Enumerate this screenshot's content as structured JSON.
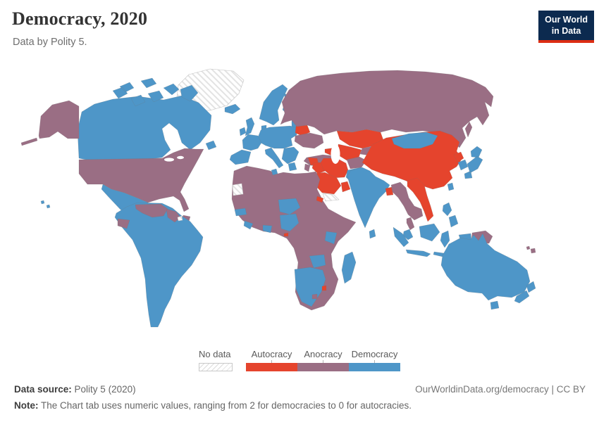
{
  "header": {
    "title": "Democracy, 2020",
    "subtitle": "Data by Polity 5."
  },
  "logo": {
    "line1": "Our World",
    "line2": "in Data",
    "bg_color": "#0c2a4f",
    "accent_color": "#dc2d14"
  },
  "legend": {
    "no_data_label": "No data",
    "categories": [
      {
        "key": "autocracy",
        "label": "Autocracy",
        "color": "#e5442d"
      },
      {
        "key": "anocracy",
        "label": "Anocracy",
        "color": "#9a6e84"
      },
      {
        "key": "democracy",
        "label": "Democracy",
        "color": "#4e96c8"
      }
    ]
  },
  "footer": {
    "source_label": "Data source:",
    "source_value": "Polity 5 (2020)",
    "note_label": "Note:",
    "note_value": "The Chart tab uses numeric values, ranging from 2 for democracies to 0 for autocracies.",
    "link_text": "OurWorldinData.org/democracy | CC BY"
  },
  "map": {
    "projection": "world",
    "value_scale": "categorical: 0 = autocracy, 1 = anocracy, 2 = democracy",
    "regions": [
      {
        "name": "Canada",
        "category": "democracy"
      },
      {
        "name": "Greenland",
        "category": "no_data"
      },
      {
        "name": "United States",
        "category": "anocracy"
      },
      {
        "name": "Mexico",
        "category": "democracy"
      },
      {
        "name": "Guatemala",
        "category": "democracy"
      },
      {
        "name": "Honduras & Nicaragua",
        "category": "anocracy"
      },
      {
        "name": "Costa Rica & Panama",
        "category": "democracy"
      },
      {
        "name": "Cuba",
        "category": "autocracy"
      },
      {
        "name": "Hispaniola",
        "category": "anocracy"
      },
      {
        "name": "Jamaica",
        "category": "democracy"
      },
      {
        "name": "Colombia",
        "category": "democracy"
      },
      {
        "name": "Venezuela",
        "category": "anocracy"
      },
      {
        "name": "Guyana",
        "category": "anocracy"
      },
      {
        "name": "Ecuador",
        "category": "anocracy"
      },
      {
        "name": "Brazil",
        "category": "democracy"
      },
      {
        "name": "Peru, Bolivia, Chile, Argentina",
        "category": "democracy"
      },
      {
        "name": "Iceland",
        "category": "democracy"
      },
      {
        "name": "United Kingdom & Ireland",
        "category": "democracy"
      },
      {
        "name": "Scandinavia & Finland",
        "category": "democracy"
      },
      {
        "name": "Western & Central Europe",
        "category": "democracy"
      },
      {
        "name": "Belarus",
        "category": "autocracy"
      },
      {
        "name": "Ukraine",
        "category": "anocracy"
      },
      {
        "name": "Russia",
        "category": "anocracy"
      },
      {
        "name": "Turkey",
        "category": "anocracy"
      },
      {
        "name": "Caucasus",
        "category": "autocracy"
      },
      {
        "name": "Kazakhstan",
        "category": "autocracy"
      },
      {
        "name": "Uzbekistan & Turkmenistan",
        "category": "autocracy"
      },
      {
        "name": "Kyrgyzstan & Tajikistan",
        "category": "anocracy"
      },
      {
        "name": "Afghanistan",
        "category": "anocracy"
      },
      {
        "name": "Pakistan",
        "category": "democracy"
      },
      {
        "name": "Iran",
        "category": "autocracy"
      },
      {
        "name": "Iraq & Syria",
        "category": "autocracy"
      },
      {
        "name": "Saudi Arabia & Gulf states",
        "category": "autocracy"
      },
      {
        "name": "Yemen",
        "category": "no_data"
      },
      {
        "name": "North Africa (Morocco–Egypt)",
        "category": "anocracy"
      },
      {
        "name": "Western Sahara",
        "category": "no_data"
      },
      {
        "name": "Senegal",
        "category": "democracy"
      },
      {
        "name": "Niger",
        "category": "democracy"
      },
      {
        "name": "Nigeria",
        "category": "democracy"
      },
      {
        "name": "Ghana",
        "category": "democracy"
      },
      {
        "name": "Liberia & Sierra Leone",
        "category": "democracy"
      },
      {
        "name": "Tunisia",
        "category": "democracy"
      },
      {
        "name": "Sudan, Ethiopia, Somalia, DRC, Angola",
        "category": "anocracy"
      },
      {
        "name": "Eritrea",
        "category": "autocracy"
      },
      {
        "name": "Equatorial Guinea",
        "category": "autocracy"
      },
      {
        "name": "Kenya",
        "category": "democracy"
      },
      {
        "name": "Zambia",
        "category": "democracy"
      },
      {
        "name": "Namibia, Botswana, South Africa",
        "category": "democracy"
      },
      {
        "name": "Lesotho",
        "category": "anocracy"
      },
      {
        "name": "Eswatini",
        "category": "autocracy"
      },
      {
        "name": "Madagascar",
        "category": "democracy"
      },
      {
        "name": "India",
        "category": "democracy"
      },
      {
        "name": "Sri Lanka",
        "category": "democracy"
      },
      {
        "name": "Bangladesh",
        "category": "autocracy"
      },
      {
        "name": "Myanmar, Thailand, Cambodia",
        "category": "anocracy"
      },
      {
        "name": "Vietnam & Laos",
        "category": "autocracy"
      },
      {
        "name": "China",
        "category": "autocracy"
      },
      {
        "name": "Mongolia",
        "category": "democracy"
      },
      {
        "name": "North Korea",
        "category": "autocracy"
      },
      {
        "name": "South Korea",
        "category": "democracy"
      },
      {
        "name": "Japan",
        "category": "democracy"
      },
      {
        "name": "Taiwan",
        "category": "democracy"
      },
      {
        "name": "Philippines",
        "category": "democracy"
      },
      {
        "name": "Malaysia & Indonesia",
        "category": "democracy"
      },
      {
        "name": "Papua New Guinea",
        "category": "anocracy"
      },
      {
        "name": "Fiji",
        "category": "anocracy"
      },
      {
        "name": "Australia",
        "category": "democracy"
      },
      {
        "name": "New Zealand",
        "category": "democracy"
      }
    ]
  }
}
